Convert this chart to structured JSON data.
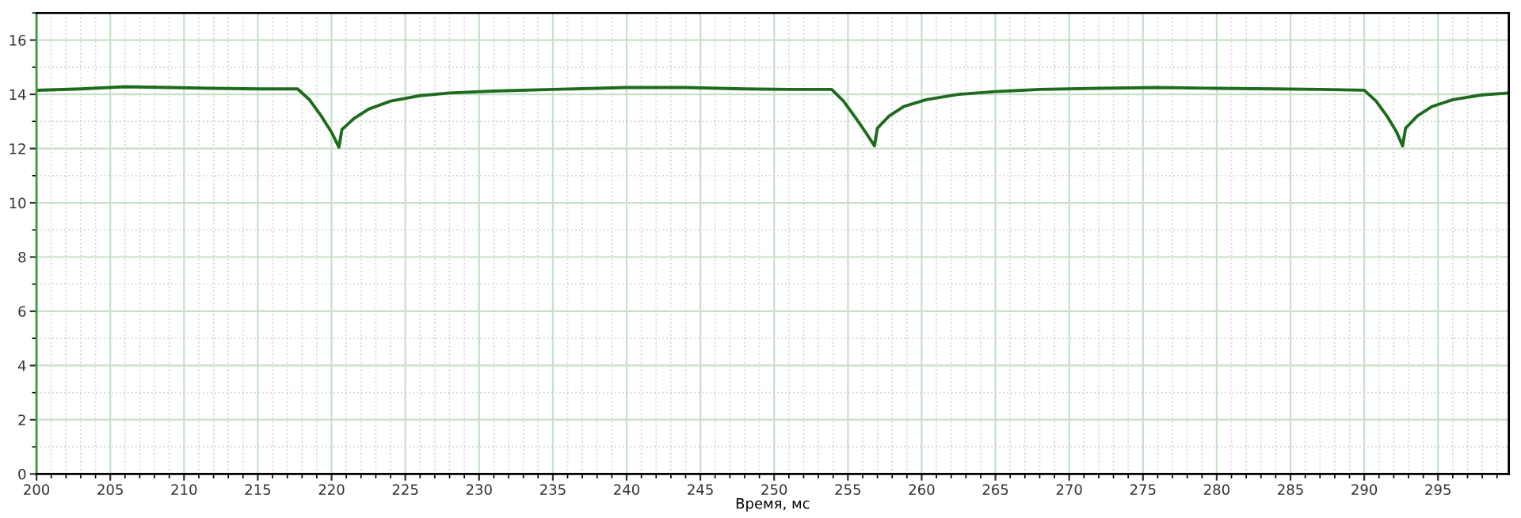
{
  "chart_data": {
    "type": "line",
    "xlabel": "Время, мс",
    "xlim": [
      200,
      299.8
    ],
    "ylim": [
      0,
      17
    ],
    "xticks": [
      200,
      205,
      210,
      215,
      220,
      225,
      230,
      235,
      240,
      245,
      250,
      255,
      260,
      265,
      270,
      275,
      280,
      285,
      290,
      295
    ],
    "yticks": [
      0,
      2,
      4,
      6,
      8,
      10,
      12,
      14,
      16
    ],
    "grid": true,
    "marker": "none",
    "line_style": "solid",
    "series": [
      {
        "color": "#1e6b1e",
        "x": [
          200,
          203,
          206,
          209,
          212,
          215,
          217.7,
          218.5,
          219.3,
          220,
          220.5,
          220.7,
          221.5,
          222.5,
          224,
          226,
          228,
          231,
          235,
          240,
          244,
          248,
          251,
          253.9,
          254.7,
          255.5,
          256.2,
          256.8,
          257,
          257.8,
          258.8,
          260.3,
          262.5,
          265,
          268,
          272,
          276,
          280,
          284,
          287,
          290.0,
          290.8,
          291.6,
          292.2,
          292.6,
          292.8,
          293.6,
          294.6,
          296,
          298,
          299.8
        ],
        "values": [
          14.15,
          14.2,
          14.28,
          14.25,
          14.22,
          14.2,
          14.2,
          13.8,
          13.2,
          12.6,
          12.05,
          12.7,
          13.1,
          13.45,
          13.75,
          13.95,
          14.05,
          14.12,
          14.18,
          14.25,
          14.25,
          14.2,
          14.18,
          14.18,
          13.75,
          13.15,
          12.6,
          12.1,
          12.75,
          13.2,
          13.55,
          13.8,
          14.0,
          14.1,
          14.18,
          14.22,
          14.25,
          14.22,
          14.2,
          14.18,
          14.15,
          13.75,
          13.15,
          12.6,
          12.1,
          12.75,
          13.2,
          13.55,
          13.8,
          13.98,
          14.05
        ]
      }
    ]
  }
}
